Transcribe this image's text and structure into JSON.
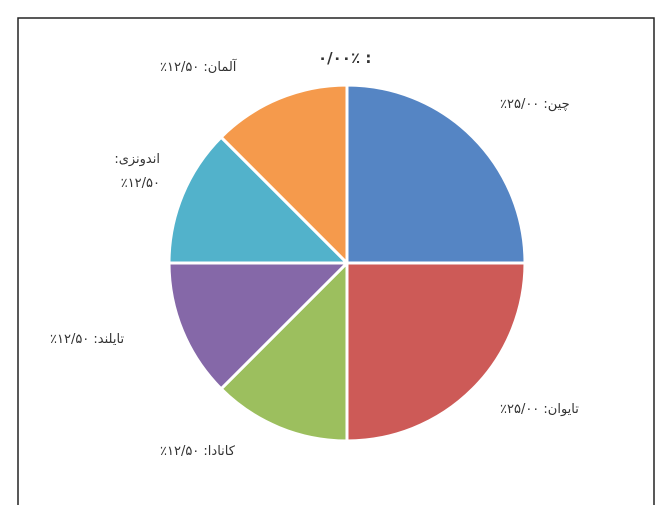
{
  "chart_data": {
    "type": "pie",
    "values": [
      25,
      25,
      12.5,
      12.5,
      12.5,
      12.5,
      0
    ],
    "value_labels": [
      "چین: ۲۵/۰۰٪",
      "تایوان: ۲۵/۰۰٪",
      "کانادا: ۱۲/۵۰٪",
      "تایلند: ۱۲/۵۰٪",
      "اندونزی: ۱۲/۵۰٪",
      "آلمان: ۱۲/۵۰٪",
      ": ۰/۰۰٪"
    ],
    "colors": [
      "#5585c4",
      "#cd5a57",
      "#9cbf5e",
      "#8568a8",
      "#52b2cb",
      "#f59a4c",
      "#888888"
    ]
  }
}
